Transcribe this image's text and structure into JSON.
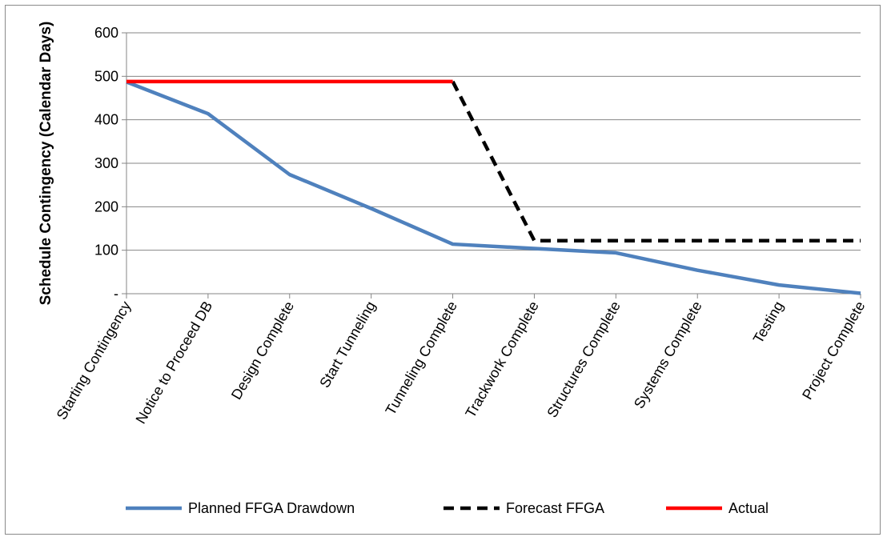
{
  "chart_data": {
    "type": "line",
    "categories": [
      "Starting Contingency",
      "Notice to Proceed DB",
      "Design Complete",
      "Start Tunneling",
      "Tunneling Complete",
      "Trackwork Complete",
      "Structures Complete",
      "Systems Complete",
      "Testing",
      "Project Complete"
    ],
    "series": [
      {
        "name": "Planned FFGA Drawdown",
        "color": "#4f81bd",
        "dash": "solid",
        "values": [
          487,
          414,
          274,
          196,
          114,
          104,
          94,
          54,
          20,
          1
        ]
      },
      {
        "name": "Forecast FFGA",
        "color": "#000000",
        "dash": "dashed",
        "values": [
          null,
          null,
          null,
          null,
          488,
          122,
          122,
          122,
          122,
          122
        ]
      },
      {
        "name": "Actual",
        "color": "#ff0000",
        "dash": "solid",
        "values": [
          488,
          488,
          488,
          488,
          488,
          null,
          null,
          null,
          null,
          null
        ]
      }
    ],
    "title": "",
    "xlabel": "",
    "ylabel": "Schedule Contingency (Calendar Days)",
    "ylim": [
      0,
      600
    ],
    "yticks": [
      0,
      100,
      200,
      300,
      400,
      500,
      600
    ],
    "ytick_labels": [
      "-",
      "100",
      "200",
      "300",
      "400",
      "500",
      "600"
    ],
    "grid": "horizontal",
    "legend": "bottom"
  }
}
